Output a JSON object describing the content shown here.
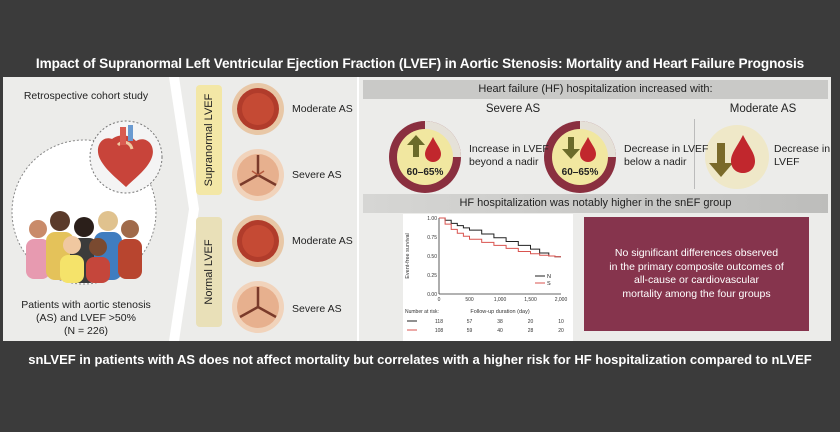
{
  "header": {
    "title": "Impact of Supranormal Left Ventricular Ejection Fraction (LVEF) in Aortic Stenosis: Mortality and Heart Failure Prognosis"
  },
  "left": {
    "study_type": "Retrospective cohort study",
    "population_line1": "Patients with aortic stenosis",
    "population_line2": "(AS) and LVEF >50%",
    "population_line3": "(N = 226)"
  },
  "middle": {
    "supranormal_label": "Supranormal LVEF",
    "normal_label": "Normal LVEF",
    "valves": [
      "Moderate AS",
      "Severe AS",
      "Moderate AS",
      "Severe AS"
    ]
  },
  "hf": {
    "heading": "Heart failure (HF) hospitalization increased with:",
    "severe_heading": "Severe AS",
    "moderate_heading": "Moderate AS",
    "badge1_range": "60–65%",
    "badge1_text_line1": "Increase in LVEF",
    "badge1_text_line2": "beyond a nadir",
    "badge2_range": "60–65%",
    "badge2_text_line1": "Decrease in LVEF",
    "badge2_text_line2": "below a nadir",
    "badge3_text_line1": "Decrease in",
    "badge3_text_line2": "LVEF"
  },
  "km": {
    "heading": "HF hospitalization was notably higher in the snEF group",
    "ylabel": "Event-free survival",
    "xlabel": "Follow-up duration (day)",
    "number_at_risk_label": "Number at risk:",
    "legend_n": "N",
    "legend_s": "S",
    "y_ticks": [
      "1.00",
      "0.75",
      "0.50",
      "0.25",
      "0.00"
    ],
    "x_ticks": [
      "0",
      "500",
      "1,000",
      "1,500",
      "2,000"
    ],
    "risk_n": [
      "118",
      "57",
      "38",
      "20",
      "10"
    ],
    "risk_s": [
      "108",
      "59",
      "40",
      "28",
      "20"
    ]
  },
  "chart_data": {
    "type": "line",
    "title": "HF hospitalization was notably higher in the snEF group",
    "xlabel": "Follow-up duration (day)",
    "ylabel": "Event-free survival",
    "xlim": [
      0,
      2000
    ],
    "ylim": [
      0,
      1
    ],
    "series": [
      {
        "name": "N",
        "color": "#222222",
        "x": [
          0,
          100,
          200,
          300,
          400,
          500,
          700,
          900,
          1100,
          1300,
          1500,
          1650,
          1800,
          1900,
          2000
        ],
        "y": [
          1.0,
          0.97,
          0.93,
          0.9,
          0.87,
          0.84,
          0.79,
          0.74,
          0.69,
          0.64,
          0.59,
          0.54,
          0.5,
          0.49,
          0.49
        ]
      },
      {
        "name": "S",
        "color": "#d9534f",
        "x": [
          0,
          100,
          200,
          300,
          400,
          500,
          700,
          900,
          1100,
          1300,
          1500,
          1650,
          1800,
          1900,
          2000
        ],
        "y": [
          1.0,
          0.92,
          0.85,
          0.8,
          0.76,
          0.72,
          0.68,
          0.64,
          0.6,
          0.56,
          0.53,
          0.51,
          0.5,
          0.49,
          0.49
        ]
      }
    ]
  },
  "conclusion": {
    "line1": "No significant differences observed",
    "line2": "in the primary composite outcomes of",
    "line3": "all-cause or cardiovascular",
    "line4": "mortality among the four groups"
  },
  "footer": {
    "text": "snLVEF in patients with AS does not affect mortality but correlates with a higher risk for HF hospitalization compared to nLVEF"
  },
  "colors": {
    "maroon": "#86344d",
    "red": "#c1272d",
    "olive": "#a08a2a",
    "yellow_band": "#f3e7a6"
  }
}
